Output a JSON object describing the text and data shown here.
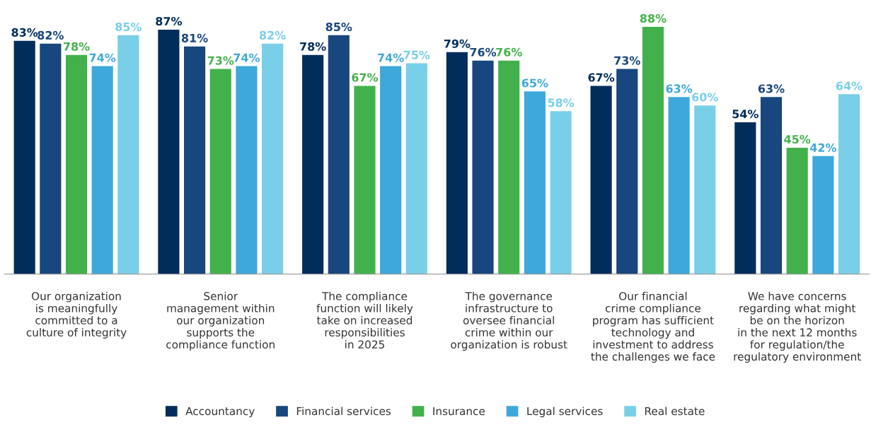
{
  "chart_data": {
    "type": "bar",
    "categories": [
      "Our organization\nis meaningfully\ncommitted to a\nculture of integrity",
      "Senior\nmanagement within\nour organization\nsupports the\ncompliance function",
      "The compliance\nfunction will likely\ntake on increased\nresponsibilities\nin 2025",
      "The governance\ninfrastructure to\noversee financial\ncrime within our\norganization is robust",
      "Our financial\ncrime compliance\nprogram has sufficient\ntechnology and\ninvestment to address\nthe challenges we face",
      "We have concerns\nregarding what might\nbe on the horizon\nin the next 12 months\nfor regulation/the\nregulatory environment"
    ],
    "series": [
      {
        "name": "Accountancy",
        "color": "#002d5a",
        "values": [
          83,
          87,
          78,
          79,
          67,
          54
        ],
        "value_labels": [
          "83%",
          "87%",
          "78%",
          "79%",
          "67%",
          "54%"
        ]
      },
      {
        "name": "Financial services",
        "color": "#18467e",
        "values": [
          82,
          81,
          85,
          76,
          73,
          63
        ],
        "value_labels": [
          "82%",
          "81%",
          "85%",
          "76%",
          "73%",
          "63%"
        ]
      },
      {
        "name": "Insurance",
        "color": "#43b14b",
        "values": [
          78,
          73,
          67,
          76,
          88,
          45
        ],
        "value_labels": [
          "78%",
          "73%",
          "67%",
          "76%",
          "88%",
          "45%"
        ]
      },
      {
        "name": "Legal services",
        "color": "#3ea8dc",
        "values": [
          74,
          74,
          74,
          65,
          63,
          42
        ],
        "value_labels": [
          "74%",
          "74%",
          "74%",
          "65%",
          "63%",
          "42%"
        ]
      },
      {
        "name": "Real estate",
        "color": "#79cfe8",
        "values": [
          85,
          82,
          75,
          58,
          60,
          64
        ],
        "value_labels": [
          "85%",
          "82%",
          "75%",
          "58%",
          "60%",
          "64%"
        ]
      }
    ],
    "legend": "bottom",
    "grid": false
  }
}
